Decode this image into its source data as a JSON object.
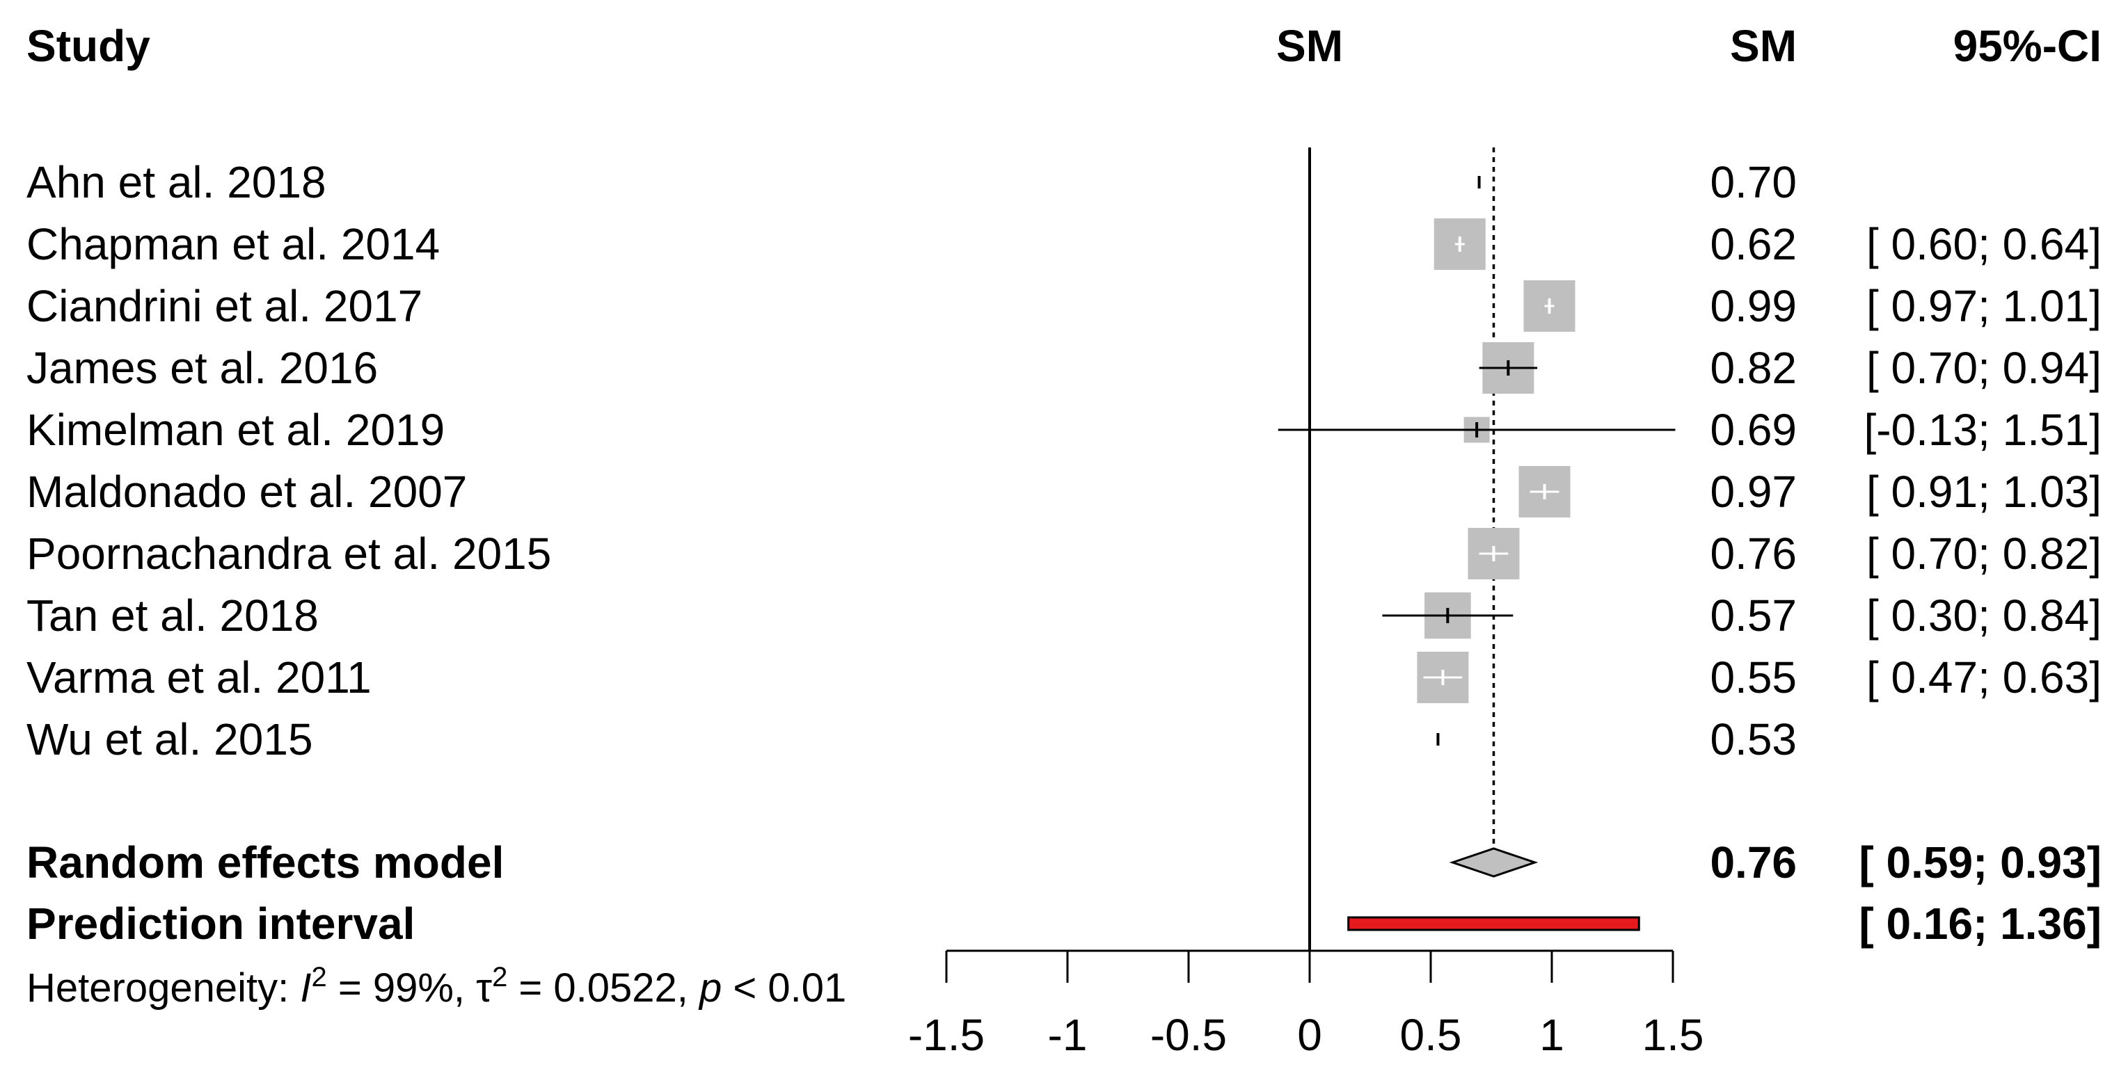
{
  "chart_data": {
    "type": "forest",
    "headers": {
      "study": "Study",
      "sm_plot": "SM",
      "sm_col": "SM",
      "ci_col": "95%-CI"
    },
    "studies": [
      {
        "name": "Ahn et al. 2018",
        "sm": 0.7,
        "lower": null,
        "upper": null,
        "weight": 0.05,
        "sm_label": "0.70",
        "ci_label": ""
      },
      {
        "name": "Chapman et al. 2014",
        "sm": 0.62,
        "lower": 0.6,
        "upper": 0.64,
        "weight": 1.0,
        "sm_label": "0.62",
        "ci_label": "[ 0.60; 0.64]"
      },
      {
        "name": "Ciandrini et al. 2017",
        "sm": 0.99,
        "lower": 0.97,
        "upper": 1.01,
        "weight": 1.0,
        "sm_label": "0.99",
        "ci_label": "[ 0.97; 1.01]"
      },
      {
        "name": "James et al. 2016",
        "sm": 0.82,
        "lower": 0.7,
        "upper": 0.94,
        "weight": 1.0,
        "sm_label": "0.82",
        "ci_label": "[ 0.70; 0.94]"
      },
      {
        "name": "Kimelman et al. 2019",
        "sm": 0.69,
        "lower": -0.13,
        "upper": 1.51,
        "weight": 0.5,
        "sm_label": "0.69",
        "ci_label": "[-0.13; 1.51]"
      },
      {
        "name": "Maldonado et al. 2007",
        "sm": 0.97,
        "lower": 0.91,
        "upper": 1.03,
        "weight": 1.0,
        "sm_label": "0.97",
        "ci_label": "[ 0.91; 1.03]"
      },
      {
        "name": "Poornachandra et al. 2015",
        "sm": 0.76,
        "lower": 0.7,
        "upper": 0.82,
        "weight": 1.0,
        "sm_label": "0.76",
        "ci_label": "[ 0.70; 0.82]"
      },
      {
        "name": "Tan et al. 2018",
        "sm": 0.57,
        "lower": 0.3,
        "upper": 0.84,
        "weight": 0.9,
        "sm_label": "0.57",
        "ci_label": "[ 0.30; 0.84]"
      },
      {
        "name": "Varma et al. 2011",
        "sm": 0.55,
        "lower": 0.47,
        "upper": 0.63,
        "weight": 1.0,
        "sm_label": "0.55",
        "ci_label": "[ 0.47; 0.63]"
      },
      {
        "name": "Wu et al. 2015",
        "sm": 0.53,
        "lower": null,
        "upper": null,
        "weight": 0.05,
        "sm_label": "0.53",
        "ci_label": ""
      }
    ],
    "random_effects": {
      "label": "Random effects model",
      "sm": 0.76,
      "lower": 0.59,
      "upper": 0.93,
      "sm_label": "0.76",
      "ci_label": "[ 0.59; 0.93]"
    },
    "prediction_interval": {
      "label": "Prediction interval",
      "lower": 0.16,
      "upper": 1.36,
      "ci_label": "[ 0.16; 1.36]"
    },
    "heterogeneity": {
      "prefix": "Heterogeneity: ",
      "i2_symbol": "I",
      "i2": " = 99%, ",
      "tau2_symbol": "τ",
      "tau2": " = 0.0522, ",
      "p_symbol": "p",
      "p": " < 0.01",
      "sup": "2"
    },
    "x_axis": {
      "ticks": [
        -1.5,
        -1,
        -0.5,
        0,
        0.5,
        1,
        1.5
      ],
      "tick_labels": [
        "-1.5",
        "-1",
        "-0.5",
        "0",
        "0.5",
        "1",
        "1.5"
      ],
      "xlim": [
        -1.5,
        1.5
      ]
    },
    "null_line": 0,
    "colors": {
      "box": "#bfbfbf",
      "prediction": "#e41a1c",
      "diamond": "#c0c0c0"
    }
  }
}
